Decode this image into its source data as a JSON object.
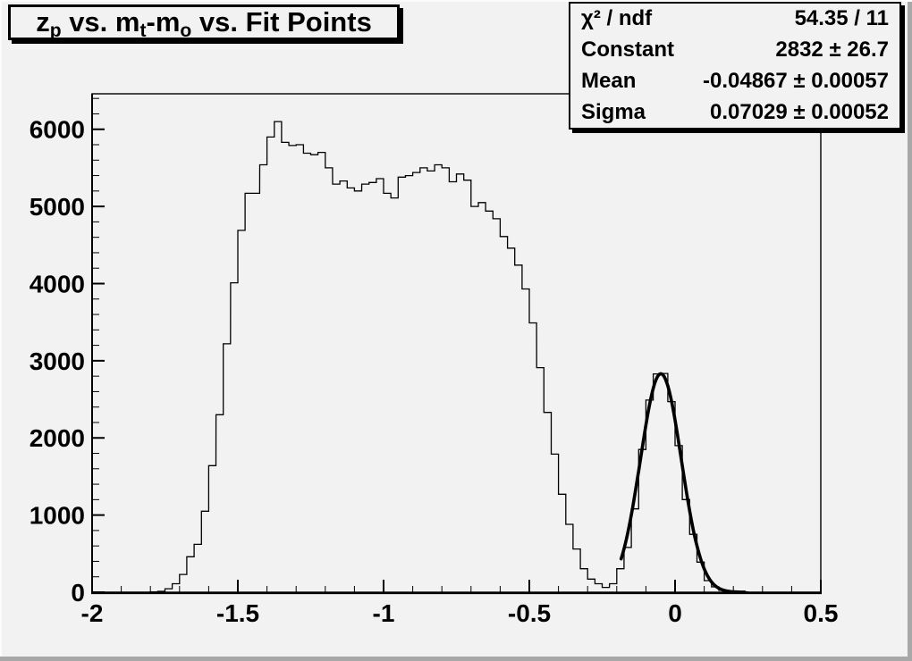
{
  "title": {
    "text": "z_p vs. m_t-m_o vs. Fit Points",
    "segments": [
      {
        "t": "z"
      },
      {
        "t": "p",
        "sub": true
      },
      {
        "t": " vs. m"
      },
      {
        "t": "t",
        "sub": true
      },
      {
        "t": "-m"
      },
      {
        "t": "o",
        "sub": true
      },
      {
        "t": " vs. Fit Points"
      }
    ]
  },
  "stats_box": {
    "rows": [
      {
        "label": "χ² / ndf",
        "value": "54.35 / 11"
      },
      {
        "label": "Constant",
        "value": "2832 ± 26.7"
      },
      {
        "label": "Mean",
        "value": "-0.04867 ± 0.00057"
      },
      {
        "label": "Sigma",
        "value": "0.07029 ± 0.00052"
      }
    ]
  },
  "colors": {
    "canvas_bg": "#f2f2f2",
    "line": "#000000",
    "box_border": "#000000",
    "box_shadow": "#000000",
    "bevel_dark": "#a8a8a8",
    "bevel_light": "#fcfcfc"
  },
  "chart_data": {
    "type": "bar",
    "style": "root-step-histogram",
    "title": "z_p vs. m_t-m_o vs. Fit Points",
    "xlabel": "",
    "ylabel": "",
    "xlim": [
      -2,
      0.5
    ],
    "ylim": [
      0,
      6460
    ],
    "grid": false,
    "legend": false,
    "bin_start": -2.0,
    "bin_width": 0.025,
    "values": [
      0,
      0,
      0,
      0,
      0,
      0,
      0,
      0,
      5,
      12,
      45,
      110,
      230,
      460,
      620,
      1050,
      1640,
      2300,
      3220,
      4010,
      4690,
      5170,
      5170,
      5540,
      5900,
      6100,
      5830,
      5790,
      5800,
      5690,
      5670,
      5700,
      5500,
      5290,
      5330,
      5240,
      5200,
      5290,
      5310,
      5360,
      5170,
      5110,
      5380,
      5400,
      5440,
      5500,
      5460,
      5540,
      5500,
      5320,
      5420,
      5340,
      5000,
      5050,
      4940,
      4840,
      4610,
      4460,
      4240,
      3930,
      3490,
      2910,
      2330,
      1790,
      1270,
      880,
      560,
      305,
      170,
      110,
      62,
      110,
      305,
      580,
      1080,
      1850,
      2490,
      2830,
      2835,
      2470,
      1900,
      1200,
      750,
      390,
      150,
      70,
      25,
      15,
      10,
      5,
      0,
      0,
      0,
      0,
      0,
      0,
      0,
      0,
      0,
      0
    ],
    "x_ticks": [
      {
        "v": -2,
        "label": "-2"
      },
      {
        "v": -1.5,
        "label": "-1.5"
      },
      {
        "v": -1,
        "label": "-1"
      },
      {
        "v": -0.5,
        "label": "-0.5"
      },
      {
        "v": 0,
        "label": "0"
      },
      {
        "v": 0.5,
        "label": "0.5"
      }
    ],
    "y_ticks": [
      {
        "v": 0,
        "label": "0"
      },
      {
        "v": 1000,
        "label": "1000"
      },
      {
        "v": 2000,
        "label": "2000"
      },
      {
        "v": 3000,
        "label": "3000"
      },
      {
        "v": 4000,
        "label": "4000"
      },
      {
        "v": 5000,
        "label": "5000"
      },
      {
        "v": 6000,
        "label": "6000"
      }
    ],
    "x_minor_step": 0.1,
    "y_minor_step": 200,
    "fit_curve": {
      "type": "gaussian",
      "constant": 2832,
      "mean": -0.04867,
      "sigma": 0.07029,
      "draw_range": [
        -0.185,
        0.24
      ]
    }
  }
}
